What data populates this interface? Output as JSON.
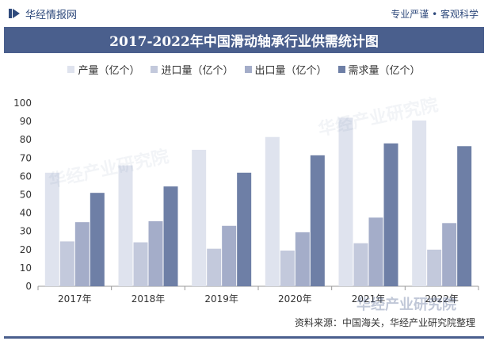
{
  "header": {
    "brand": "华经情报网",
    "slogan": "专业严谨 • 客观科学"
  },
  "footer": {
    "source": "资料来源：中国海关，华经产业研究院整理"
  },
  "watermark_text": "华经产业研究院",
  "colors": {
    "header_bar": "#4a5f8d",
    "series": [
      "#dfe3ee",
      "#c3c9dc",
      "#a4adc9",
      "#6e7fa6"
    ]
  },
  "chart_data": {
    "type": "bar",
    "title": "2017-2022年中国滑动轴承行业供需统计图",
    "categories": [
      "2017年",
      "2018年",
      "2019年",
      "2020年",
      "2021年",
      "2022年"
    ],
    "series": [
      {
        "name": "产量（亿个）",
        "values": [
          62,
          66,
          74.5,
          81.5,
          92,
          90.5
        ]
      },
      {
        "name": "进口量（亿个）",
        "values": [
          24.5,
          24,
          20.5,
          19.5,
          23.5,
          20
        ]
      },
      {
        "name": "出口量（亿个）",
        "values": [
          35,
          35.5,
          33,
          29.5,
          37.5,
          34.5
        ]
      },
      {
        "name": "需求量（亿个）",
        "values": [
          51,
          54.5,
          62,
          71.5,
          78,
          76.5
        ]
      }
    ],
    "xlabel": "",
    "ylabel": "",
    "ylim": [
      0,
      100
    ],
    "yticks": [
      0,
      10,
      20,
      30,
      40,
      50,
      60,
      70,
      80,
      90,
      100
    ],
    "grid": false,
    "legend": "top"
  }
}
